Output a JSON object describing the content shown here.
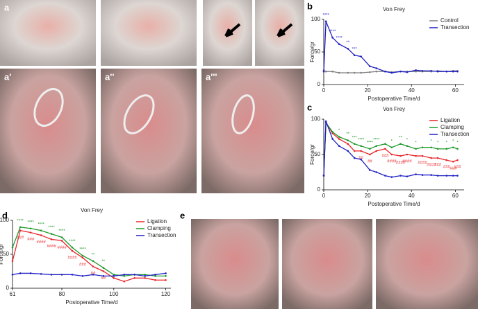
{
  "panels": {
    "a": "a",
    "a1": "a'",
    "a2": "a''",
    "a3": "a'''",
    "b": "b",
    "c": "c",
    "d": "d",
    "e": "e"
  },
  "chart_data": [
    {
      "type": "line",
      "title": "Von Frey",
      "x_label": "Postoperative Time/d",
      "y_label": "Force/gr",
      "x": [
        0,
        1,
        4,
        7,
        11,
        14,
        17,
        21,
        24,
        28,
        31,
        35,
        38,
        42,
        45,
        49,
        52,
        56,
        59,
        61
      ],
      "xlim": [
        0,
        64
      ],
      "xticks": [
        0,
        20,
        40,
        60
      ],
      "ylim": [
        0,
        100
      ],
      "yticks": [
        0,
        50,
        100
      ],
      "legend": "upper right",
      "series": [
        {
          "name": "Control",
          "color": "#808080",
          "sig_position": "above",
          "values": [
            22,
            20,
            20,
            18,
            18,
            18,
            18,
            19,
            20,
            20,
            19,
            20,
            20,
            20,
            20,
            20,
            21,
            20,
            21,
            21
          ],
          "sig": [
            null,
            null,
            null,
            null,
            null,
            null,
            null,
            null,
            null,
            null,
            null,
            null,
            null,
            null,
            null,
            null,
            null,
            null,
            null,
            null
          ]
        },
        {
          "name": "Transection",
          "color": "#1f1fc4",
          "sig_position": "above",
          "values": [
            20,
            97,
            72,
            62,
            55,
            45,
            43,
            28,
            25,
            20,
            18,
            20,
            19,
            22,
            21,
            21,
            20,
            20,
            20,
            20
          ],
          "sig": [
            null,
            "****",
            "****",
            "****",
            "**",
            "***",
            null,
            null,
            null,
            null,
            null,
            null,
            null,
            null,
            null,
            null,
            null,
            null,
            null,
            null
          ]
        }
      ]
    },
    {
      "type": "line",
      "title": "Von Frey",
      "x_label": "Postoperative Time/d",
      "y_label": "Force/gr",
      "x": [
        0,
        1,
        4,
        7,
        11,
        14,
        17,
        21,
        24,
        28,
        31,
        35,
        38,
        42,
        45,
        49,
        52,
        56,
        59,
        61
      ],
      "xlim": [
        0,
        64
      ],
      "xticks": [
        0,
        20,
        40,
        60
      ],
      "ylim": [
        0,
        100
      ],
      "yticks": [
        0,
        50,
        100
      ],
      "legend": "upper right",
      "series": [
        {
          "name": "Ligation",
          "color": "#e8262b",
          "sig_position": "below",
          "values": [
            20,
            95,
            80,
            72,
            65,
            55,
            55,
            50,
            55,
            58,
            50,
            48,
            50,
            48,
            48,
            45,
            45,
            42,
            40,
            42
          ],
          "sig": [
            null,
            null,
            null,
            null,
            null,
            null,
            "##",
            "##",
            null,
            "###",
            "####",
            "####",
            "####",
            null,
            "####",
            "####",
            "###",
            "###",
            "###",
            "###"
          ]
        },
        {
          "name": "Clamping",
          "color": "#1e9a2c",
          "sig_position": "above",
          "values": [
            20,
            95,
            82,
            75,
            70,
            65,
            62,
            58,
            62,
            65,
            60,
            65,
            62,
            58,
            60,
            60,
            58,
            58,
            60,
            58
          ],
          "sig": [
            null,
            null,
            null,
            "*",
            "**",
            "***",
            "****",
            "****",
            "****",
            null,
            "*",
            "**",
            "*",
            "*",
            null,
            "*",
            "*",
            "*",
            "*",
            "*"
          ]
        },
        {
          "name": "Transection",
          "color": "#1f1fc4",
          "sig_position": "above",
          "values": [
            20,
            97,
            72,
            62,
            55,
            45,
            43,
            28,
            25,
            20,
            18,
            20,
            19,
            22,
            21,
            21,
            20,
            20,
            20,
            20
          ],
          "sig": [
            null,
            null,
            null,
            null,
            null,
            null,
            null,
            null,
            null,
            null,
            null,
            null,
            null,
            null,
            null,
            null,
            null,
            null,
            null,
            null
          ]
        }
      ]
    },
    {
      "type": "line",
      "title": "Von Frey",
      "x_label": "Postoperative Time/d",
      "y_label": "Force/gr",
      "x": [
        61,
        64,
        68,
        72,
        76,
        80,
        84,
        88,
        92,
        96,
        100,
        104,
        108,
        112,
        116,
        120
      ],
      "xlim": [
        61,
        122
      ],
      "xticks": [
        61,
        80,
        100,
        120
      ],
      "ylim": [
        0,
        100
      ],
      "yticks": [
        0,
        50,
        100
      ],
      "legend": "upper right",
      "series": [
        {
          "name": "Ligation",
          "color": "#e8262b",
          "sig_position": "below",
          "values": [
            40,
            85,
            82,
            78,
            72,
            70,
            55,
            45,
            32,
            25,
            15,
            10,
            15,
            15,
            12,
            12
          ],
          "sig": [
            null,
            "###",
            "###",
            "####",
            "####",
            "####",
            "####",
            "###",
            "##",
            "##",
            null,
            null,
            null,
            null,
            null,
            null
          ]
        },
        {
          "name": "Clamping",
          "color": "#1e9a2c",
          "sig_position": "above",
          "values": [
            60,
            90,
            88,
            85,
            80,
            75,
            60,
            48,
            40,
            30,
            20,
            18,
            20,
            20,
            18,
            18
          ],
          "sig": [
            "*",
            "****",
            "****",
            "****",
            "****",
            "****",
            "****",
            "****",
            "**",
            "**",
            null,
            null,
            null,
            null,
            null,
            null
          ]
        },
        {
          "name": "Transection",
          "color": "#1f1fc4",
          "sig_position": "above",
          "values": [
            20,
            22,
            22,
            21,
            20,
            20,
            20,
            18,
            20,
            18,
            18,
            20,
            20,
            18,
            20,
            22
          ],
          "sig": [
            null,
            null,
            null,
            null,
            null,
            null,
            null,
            null,
            null,
            null,
            null,
            null,
            null,
            null,
            null,
            null
          ]
        }
      ]
    }
  ]
}
